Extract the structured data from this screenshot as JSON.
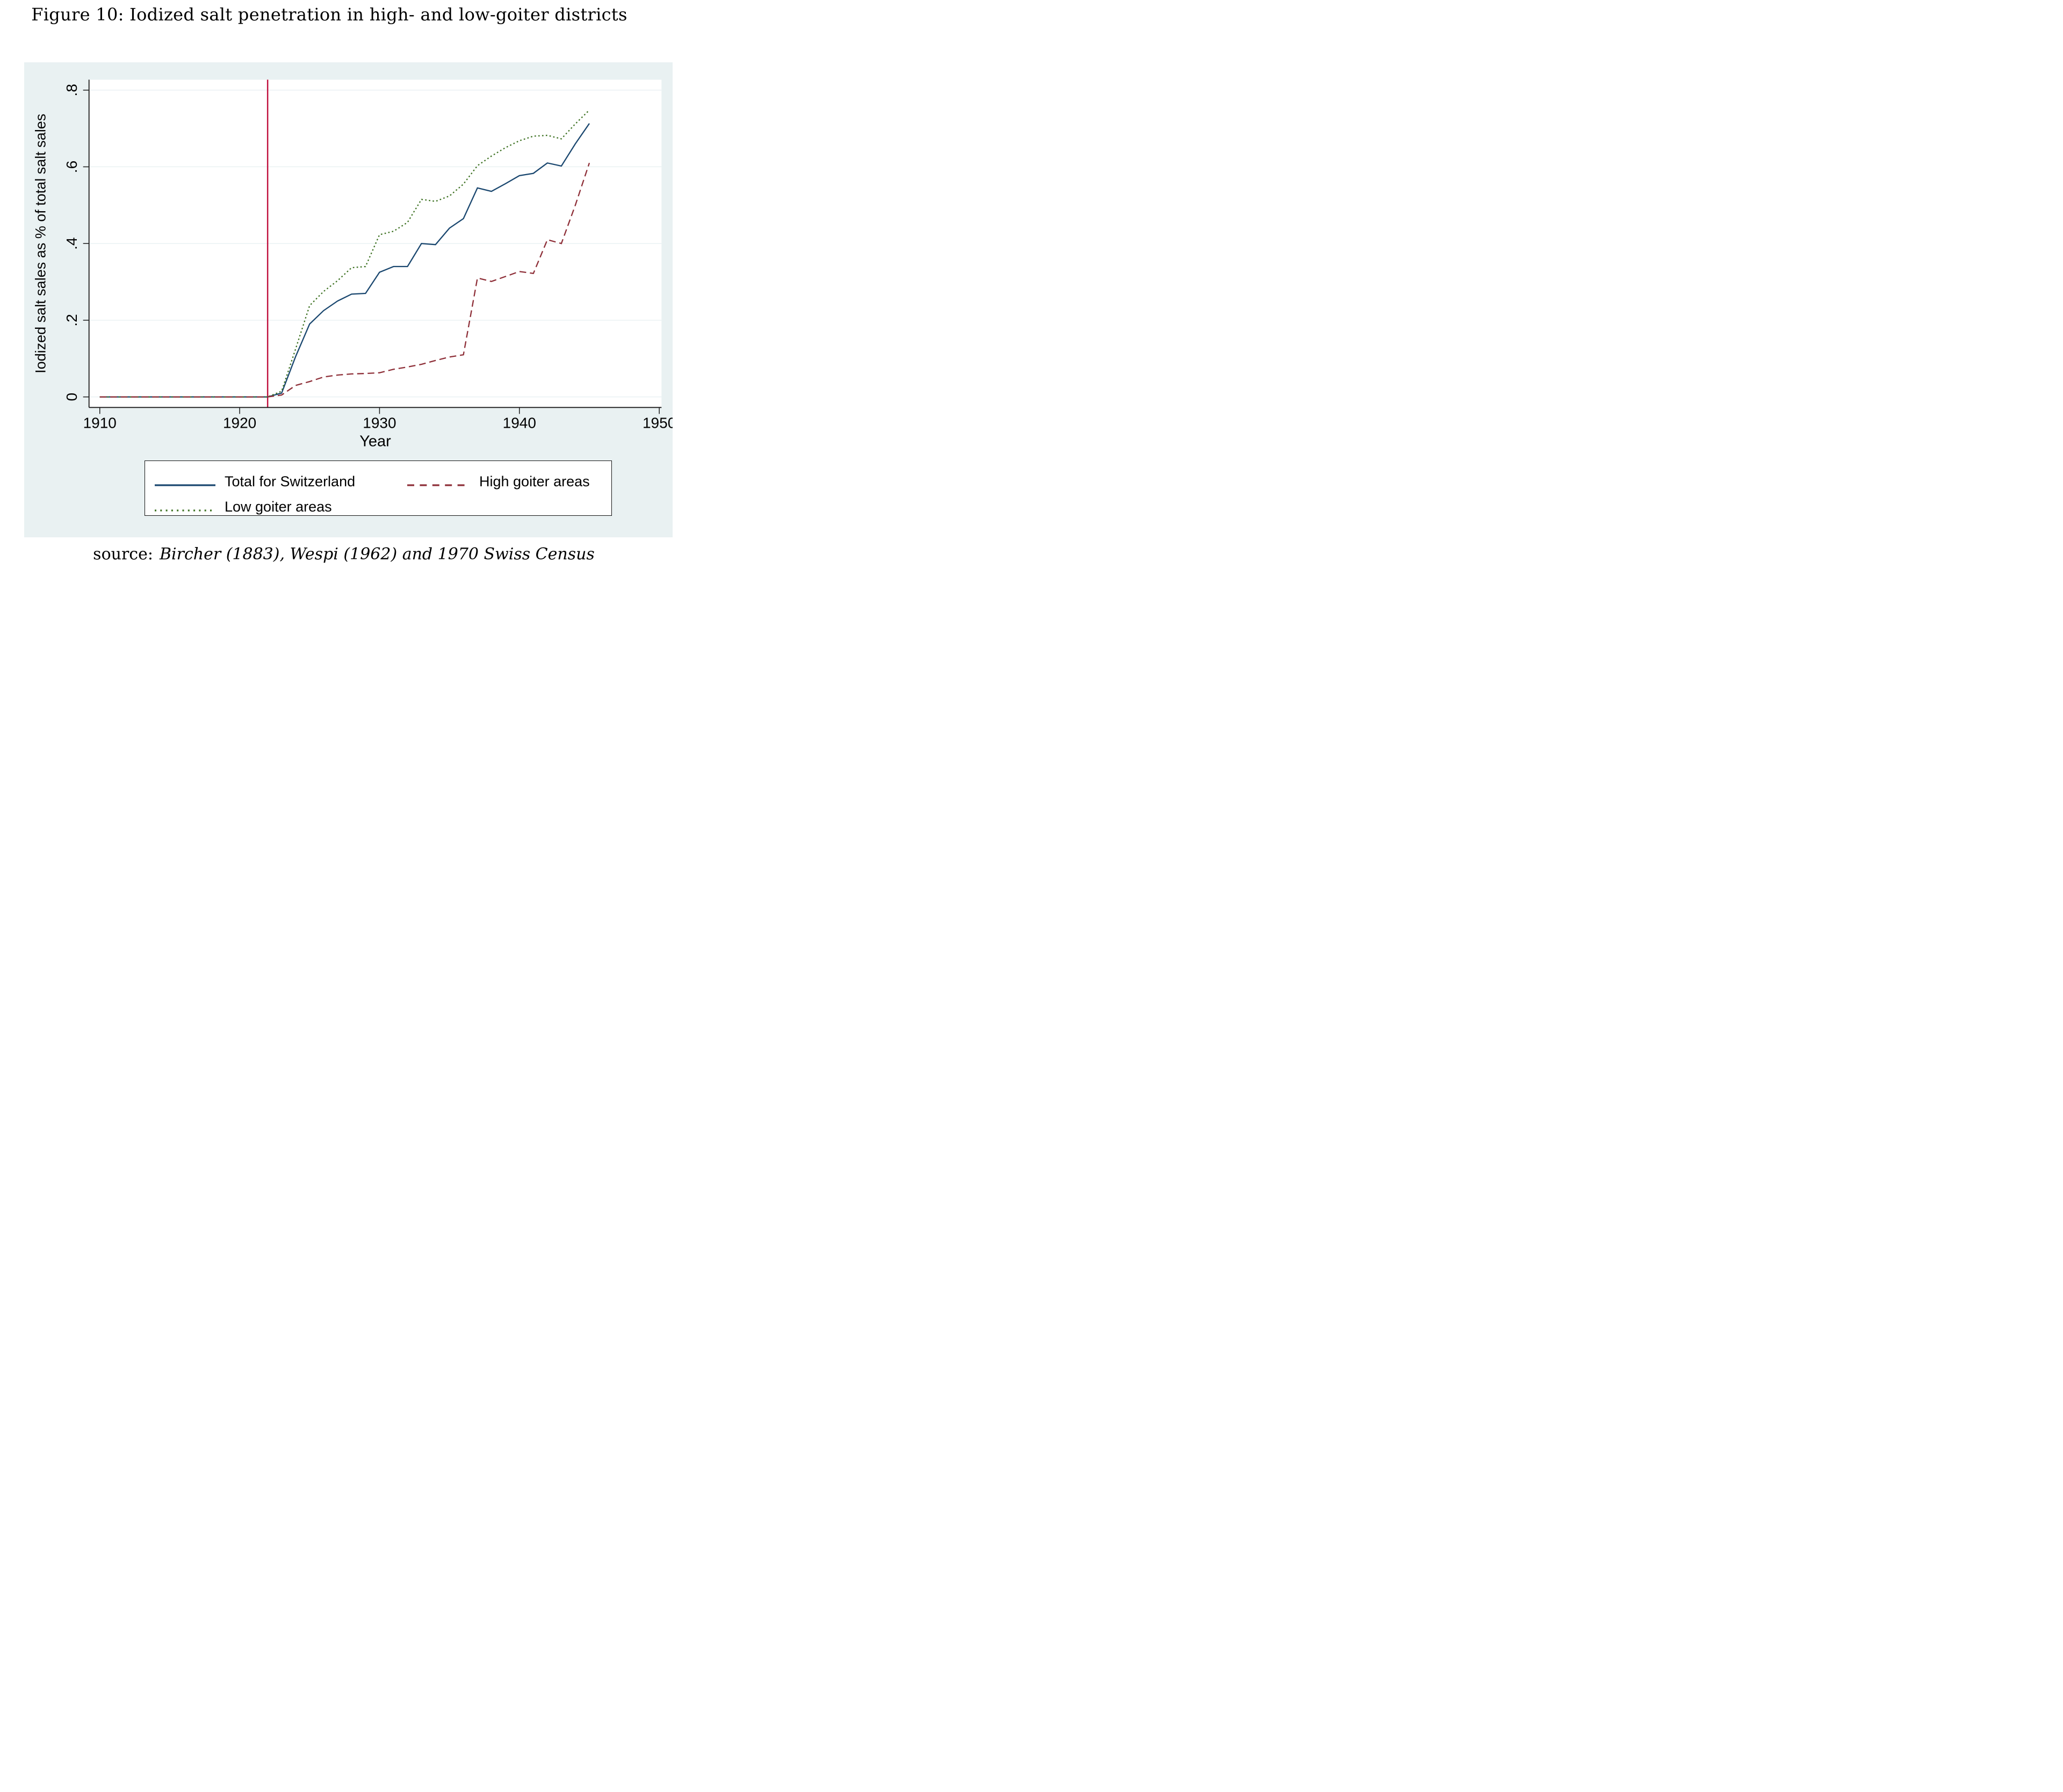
{
  "figure": {
    "title": "Figure 10: Iodized salt penetration in high- and low-goiter districts",
    "source_prefix": "source:",
    "source_text": "Bircher (1883), Wespi (1962) and 1970 Swiss Census"
  },
  "colors": {
    "graph_background": "#e9f1f2",
    "plot_background": "#ffffff",
    "gridline": "#e3edef",
    "axis": "#1a1a1a",
    "text": "#000000",
    "total_line": "#1a476f",
    "high_goiter_line": "#8e2f38",
    "low_goiter_line": "#3e7223",
    "reference_line": "#c11240"
  },
  "chart_data": {
    "type": "line",
    "title": "",
    "xlabel": "Year",
    "ylabel": "Iodized salt sales as % of total salt sales",
    "xlim": [
      1909.23,
      1950.16
    ],
    "ylim": [
      -0.0275,
      0.8272
    ],
    "x_ticks": [
      1910,
      1920,
      1930,
      1940,
      1950
    ],
    "x_tick_labels": [
      "1910",
      "1920",
      "1930",
      "1940",
      "1950"
    ],
    "y_ticks": [
      0,
      0.2,
      0.4,
      0.6,
      0.8
    ],
    "y_tick_labels": [
      "0",
      ".2",
      ".4",
      ".6",
      ".8"
    ],
    "grid": "horizontal",
    "legend_position": "bottom",
    "vline": {
      "x": 1922,
      "color": "#c11240"
    },
    "x": [
      1910,
      1911,
      1912,
      1913,
      1914,
      1915,
      1916,
      1917,
      1918,
      1919,
      1920,
      1921,
      1922,
      1923,
      1924,
      1925,
      1926,
      1927,
      1928,
      1929,
      1930,
      1931,
      1932,
      1933,
      1934,
      1935,
      1936,
      1937,
      1938,
      1939,
      1940,
      1941,
      1942,
      1943,
      1944,
      1945
    ],
    "series": [
      {
        "name": "Total for Switzerland",
        "style": "solid",
        "color": "#1a476f",
        "values": [
          0,
          0,
          0,
          0,
          0,
          0,
          0,
          0,
          0,
          0,
          0,
          0,
          0,
          0.01,
          0.105,
          0.19,
          0.225,
          0.25,
          0.268,
          0.27,
          0.325,
          0.34,
          0.34,
          0.4,
          0.397,
          0.44,
          0.465,
          0.545,
          0.536,
          0.556,
          0.577,
          0.583,
          0.61,
          0.602,
          0.66,
          0.713
        ]
      },
      {
        "name": "High goiter areas",
        "style": "dashed",
        "color": "#8e2f38",
        "values": [
          0,
          0,
          0,
          0,
          0,
          0,
          0,
          0,
          0,
          0,
          0,
          0,
          0,
          0.005,
          0.03,
          0.04,
          0.052,
          0.057,
          0.06,
          0.061,
          0.063,
          0.072,
          0.078,
          0.085,
          0.095,
          0.104,
          0.11,
          0.31,
          0.301,
          0.314,
          0.327,
          0.322,
          0.41,
          0.4,
          0.5,
          0.61
        ]
      },
      {
        "name": "Low goiter areas",
        "style": "dotted",
        "color": "#3e7223",
        "values": [
          0,
          0,
          0,
          0,
          0,
          0,
          0,
          0,
          0,
          0,
          0,
          0,
          0,
          0.015,
          0.125,
          0.238,
          0.275,
          0.303,
          0.337,
          0.34,
          0.423,
          0.432,
          0.455,
          0.515,
          0.51,
          0.524,
          0.555,
          0.603,
          0.628,
          0.65,
          0.668,
          0.68,
          0.682,
          0.673,
          0.712,
          0.748
        ]
      }
    ]
  }
}
